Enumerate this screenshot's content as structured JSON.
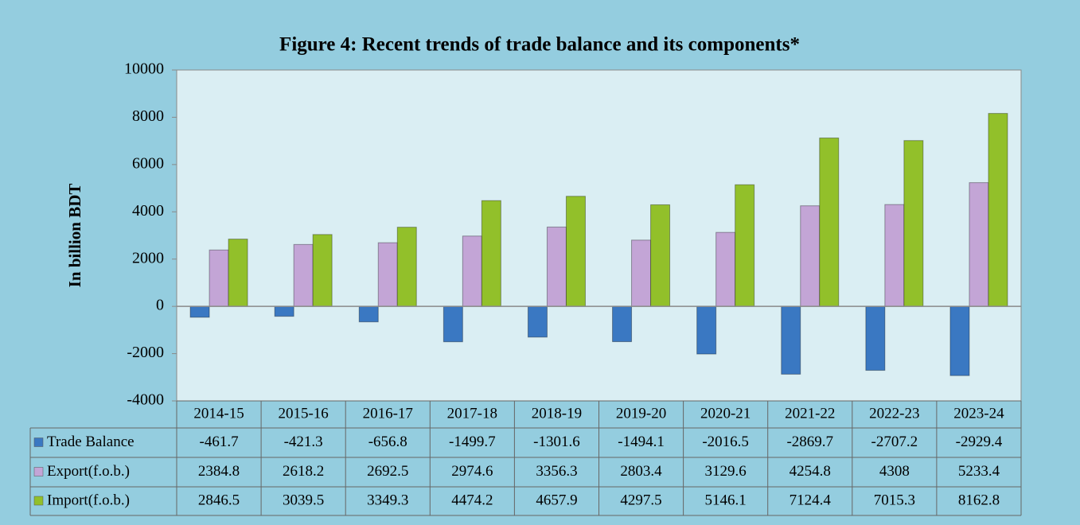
{
  "chart_data": {
    "type": "bar",
    "title": "Figure 4: Recent trends of trade balance and its components*",
    "y_label": "In billion BDT",
    "categories": [
      "2014-15",
      "2015-16",
      "2016-17",
      "2017-18",
      "2018-19",
      "2019-20",
      "2020-21",
      "2021-22",
      "2022-23",
      "2023-24"
    ],
    "series": [
      {
        "name": "Trade Balance",
        "color": "#3a78c2",
        "values": [
          -461.7,
          -421.3,
          -656.8,
          -1499.7,
          -1301.6,
          -1494.1,
          -2016.5,
          -2869.7,
          -2707.2,
          -2929.4
        ]
      },
      {
        "name": "Export(f.o.b.)",
        "color": "#c3a5d6",
        "values": [
          2384.8,
          2618.2,
          2692.5,
          2974.6,
          3356.3,
          2803.4,
          3129.6,
          4254.8,
          4308,
          5233.4
        ]
      },
      {
        "name": "Import(f.o.b.)",
        "color": "#92c02a",
        "values": [
          2846.5,
          3039.5,
          3349.3,
          4474.2,
          4657.9,
          4297.5,
          5146.1,
          7124.4,
          7015.3,
          8162.8
        ]
      }
    ],
    "ylim": [
      -4000,
      10000
    ],
    "yticks": [
      -4000,
      -2000,
      0,
      2000,
      4000,
      6000,
      8000,
      10000
    ],
    "grid": false
  }
}
